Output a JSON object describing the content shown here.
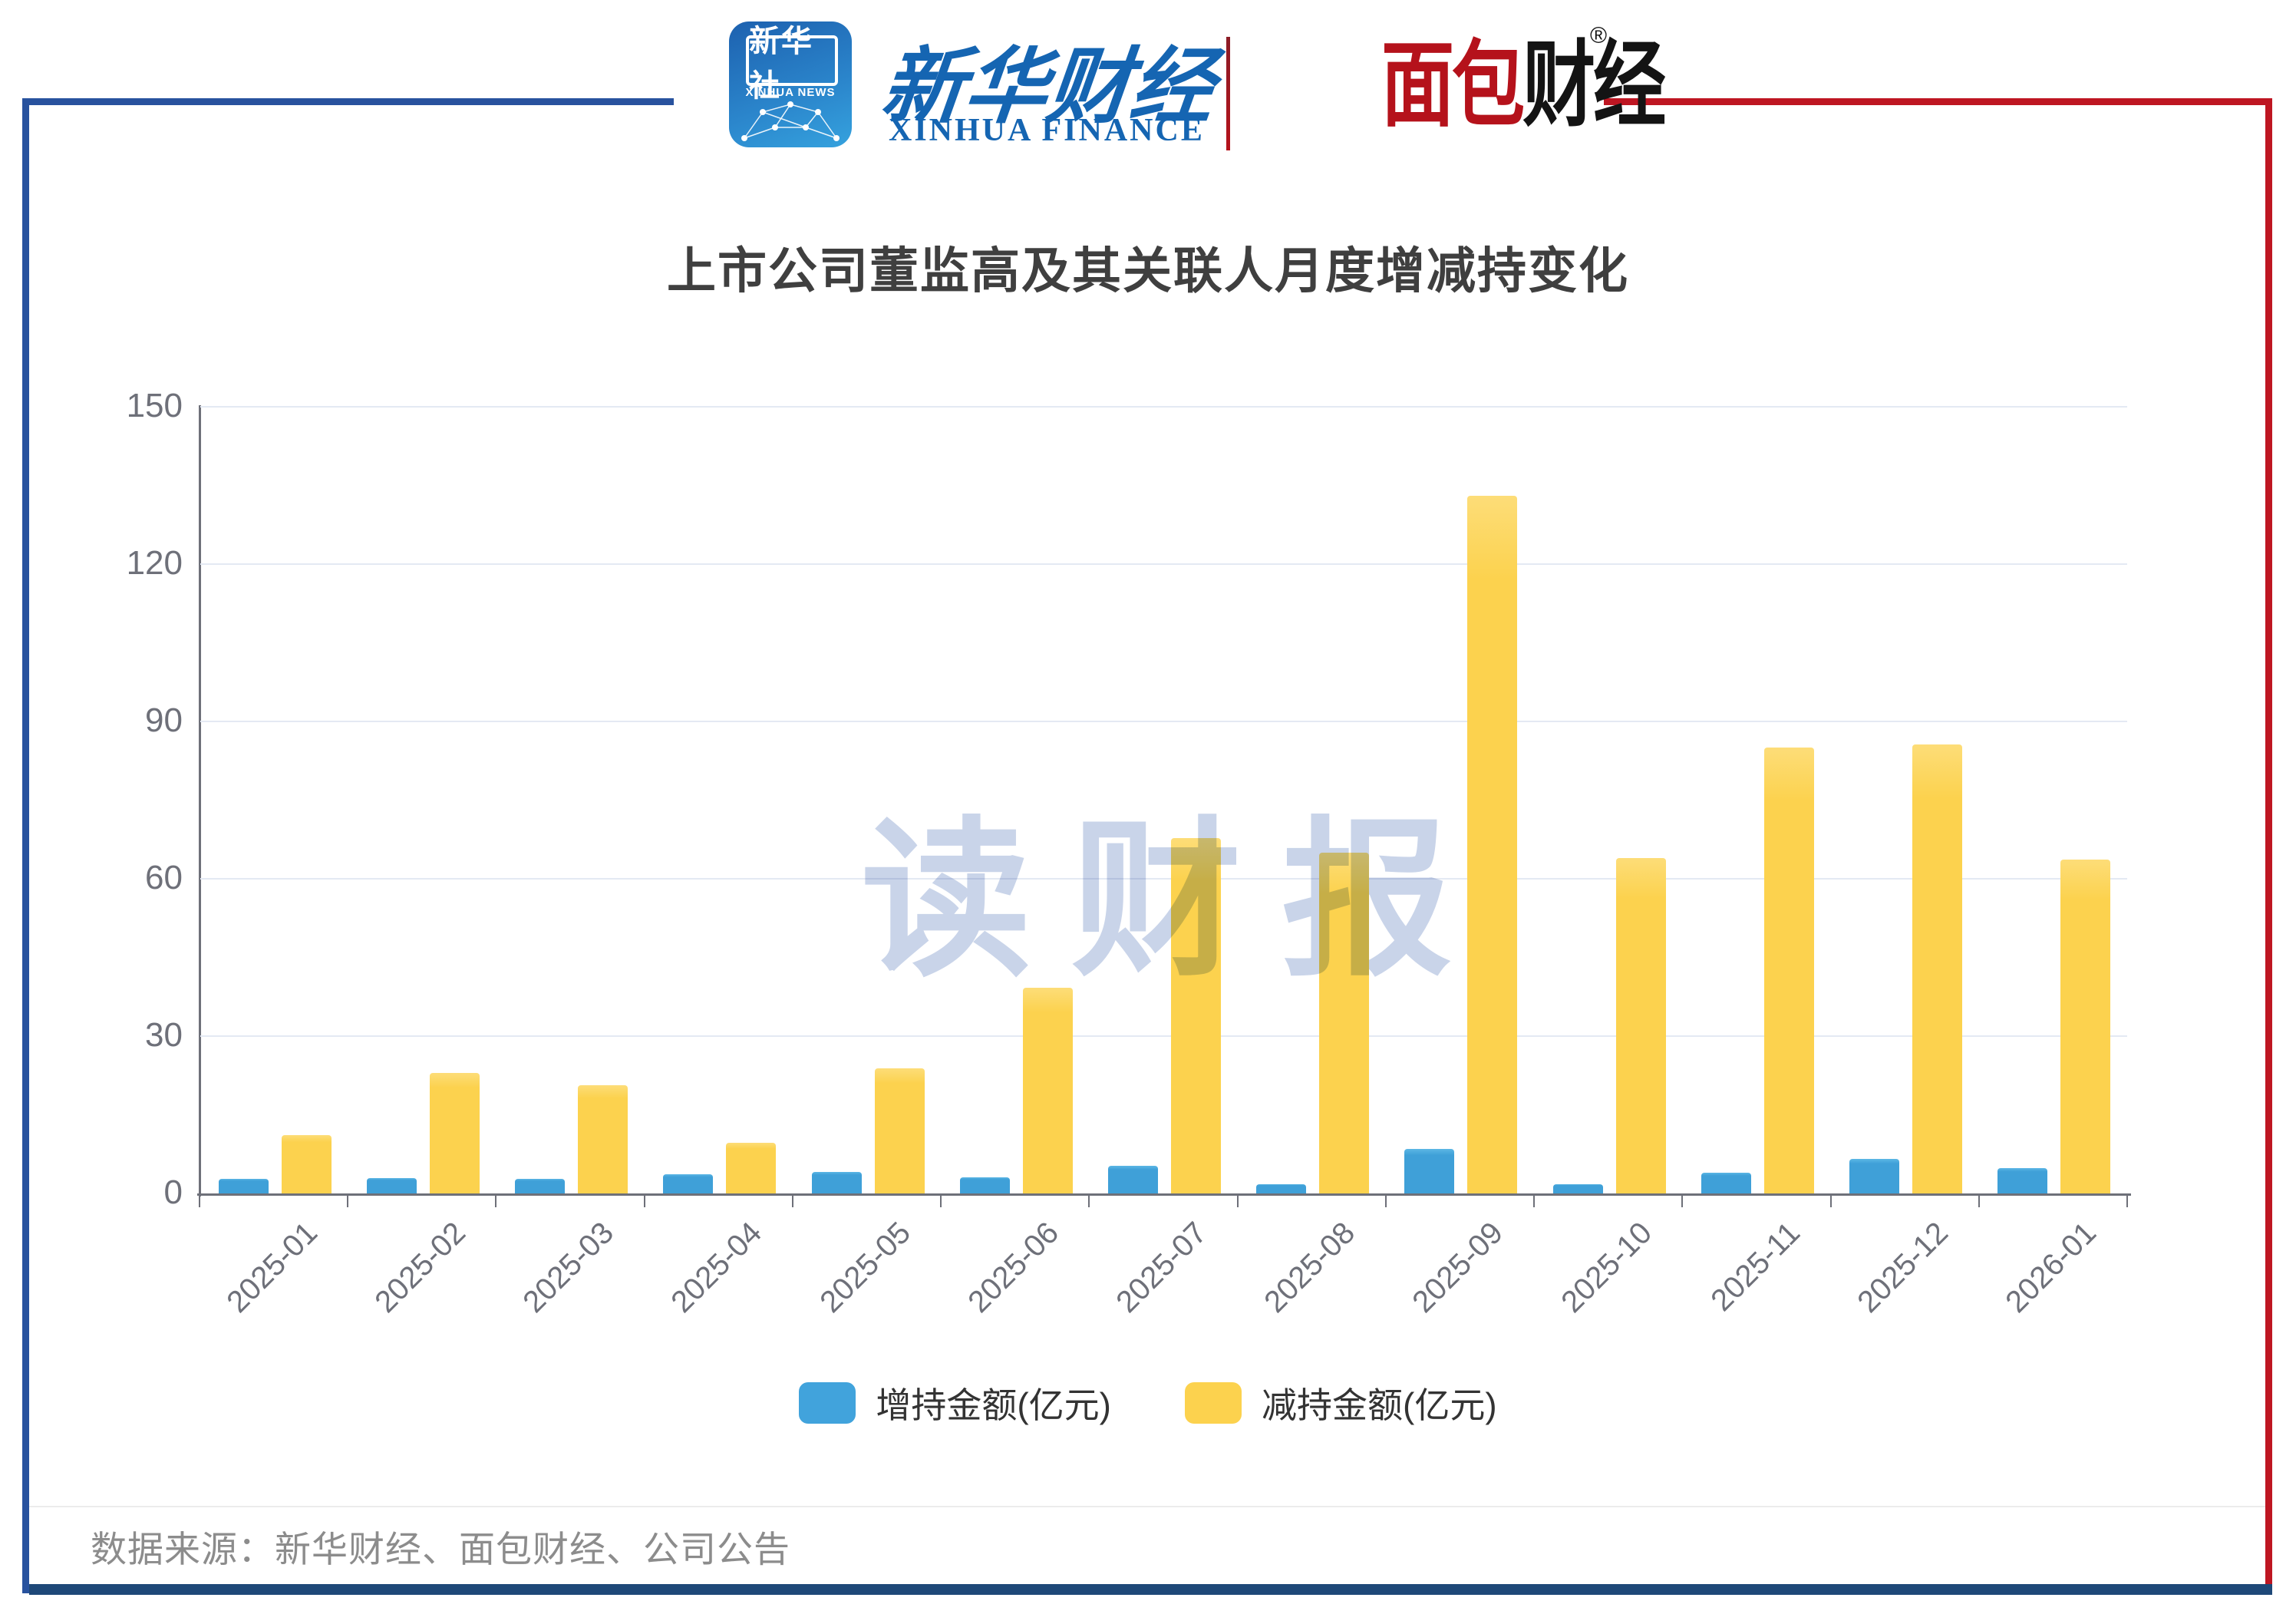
{
  "header": {
    "xinhua_app": {
      "name_cn": "新华社",
      "name_en": "XINHUA NEWS"
    },
    "xinhua_finance": {
      "name_cn": "新华财经",
      "name_en": "XINHUA FINANCE"
    },
    "bread_finance": {
      "name_cn_part1": "面包",
      "name_cn_part2": "财经",
      "registered_mark": "®"
    }
  },
  "chart_data": {
    "type": "bar",
    "title": "上市公司董监高及其关联人月度增减持变化",
    "categories": [
      "2025-01",
      "2025-02",
      "2025-03",
      "2025-04",
      "2025-05",
      "2025-06",
      "2025-07",
      "2025-08",
      "2025-09",
      "2025-10",
      "2025-11",
      "2025-12",
      "2026-01"
    ],
    "series": [
      {
        "name": "增持金额(亿元)",
        "color": "#41A3DC",
        "values": [
          2.8,
          2.9,
          2.8,
          3.7,
          4.1,
          3.1,
          5.3,
          1.8,
          8.5,
          1.7,
          3.9,
          6.6,
          4.9
        ]
      },
      {
        "name": "减持金额(亿元)",
        "color": "#FCD24E",
        "values": [
          11.1,
          23.0,
          20.6,
          9.6,
          23.8,
          39.2,
          67.7,
          65.0,
          133.0,
          63.9,
          85.0,
          85.6,
          63.7
        ]
      }
    ],
    "ylabel": "",
    "xlabel": "",
    "ylim": [
      0,
      150
    ],
    "yticks": [
      0,
      30,
      60,
      90,
      120,
      150
    ],
    "grid": true,
    "legend_position": "bottom",
    "x_label_rotation_deg": 45,
    "watermark": "读财报"
  },
  "footer": {
    "source": "数据来源：新华财经、面包财经、公司公告"
  },
  "colors": {
    "increase_bar": "#41A3DC",
    "decrease_bar": "#FCD24E",
    "frame_blue": "#28529E",
    "frame_red": "#BE1622",
    "frame_bottom_navy": "#1E4878",
    "axis": "#6E7079",
    "gridline": "#E4E9F3",
    "title_text": "#3F3F3F",
    "watermark_text": "#C9D4E9",
    "footer_text": "#8C8C8C",
    "xinhua_blue": "#1565B2",
    "bread_red": "#B5121B"
  }
}
